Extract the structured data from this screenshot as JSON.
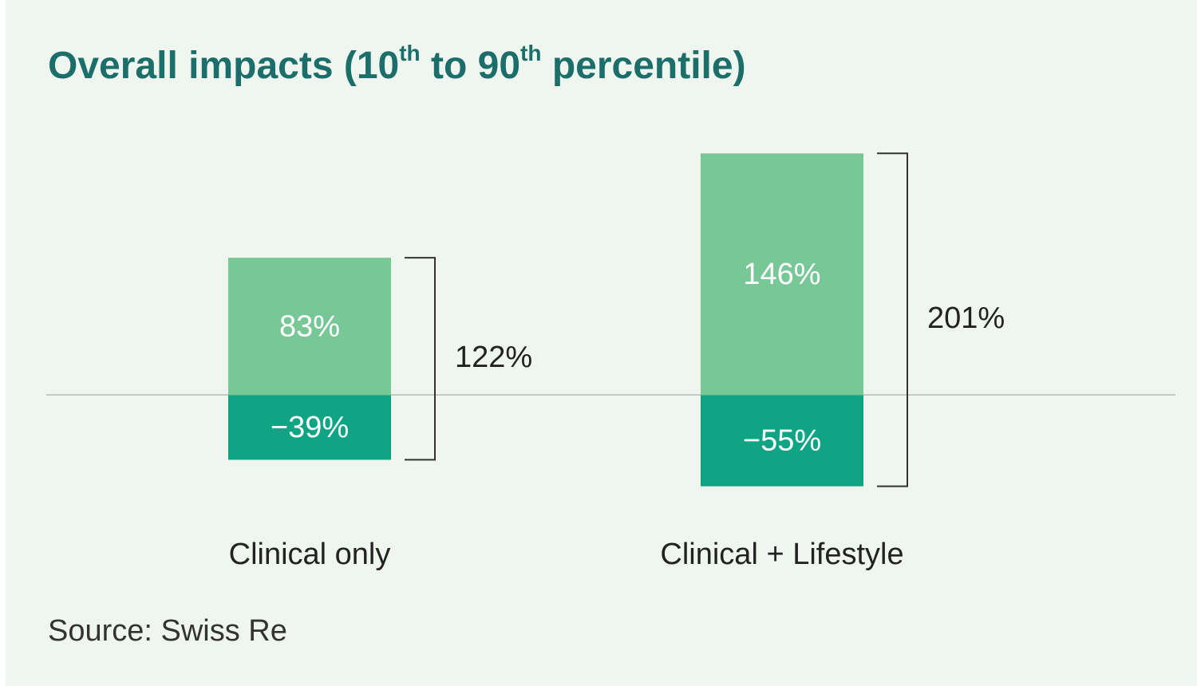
{
  "chart_data": {
    "type": "bar",
    "title": [
      "Overall impacts (10",
      "th",
      " to 90",
      "th",
      " percentile)"
    ],
    "categories": [
      "Clinical only",
      "Clinical + Lifestyle"
    ],
    "series": [
      {
        "name": null,
        "color": "#78c797",
        "values": [
          83,
          146
        ],
        "value_labels": [
          "83%",
          "146%"
        ]
      },
      {
        "name": null,
        "color": "#0ea484",
        "values": [
          -39,
          -55
        ],
        "value_labels": [
          "−39%",
          "−55%"
        ]
      }
    ],
    "ranges": [
      122,
      201
    ],
    "range_labels": [
      "122%",
      "201%"
    ],
    "ylim": [
      -60,
      150
    ],
    "source": "Source: Swiss Re"
  }
}
